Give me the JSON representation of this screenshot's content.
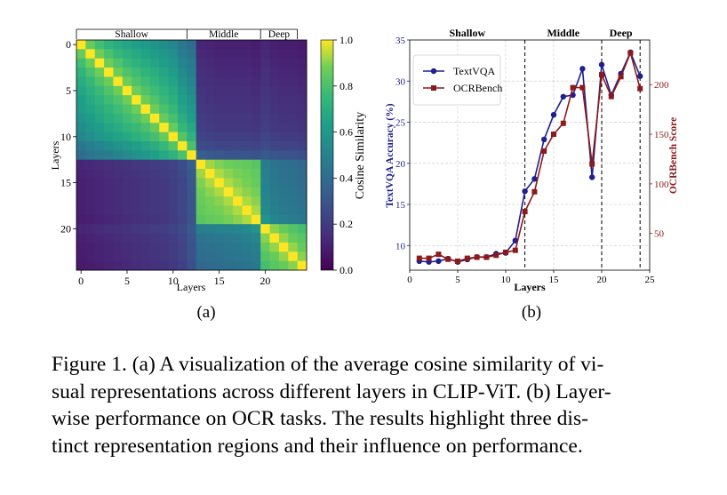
{
  "chart_data": [
    {
      "type": "heatmap",
      "xlabel": "Layers",
      "ylabel": "Layers",
      "x_ticks": [
        0,
        5,
        10,
        15,
        20
      ],
      "y_ticks": [
        0,
        5,
        10,
        15,
        20
      ],
      "n_layers": 25,
      "regions": [
        {
          "label": "Shallow",
          "start": 0,
          "end": 12
        },
        {
          "label": "Middle",
          "start": 12,
          "end": 20
        },
        {
          "label": "Deep",
          "start": 20,
          "end": 24
        }
      ],
      "colorbar": {
        "label": "Cosine Similarity",
        "min": 0.0,
        "max": 1.0,
        "ticks": [
          "0.0",
          "0.2",
          "0.4",
          "0.6",
          "0.8",
          "1.0"
        ]
      },
      "colors": {
        "low": "#440154",
        "mid": "#21918c",
        "high": "#fde725"
      },
      "panel_label": "(a)",
      "values": [
        [
          1.0,
          0.86,
          0.78,
          0.73,
          0.69,
          0.66,
          0.63,
          0.61,
          0.58,
          0.55,
          0.52,
          0.45,
          0.4,
          0.12,
          0.11,
          0.1,
          0.1,
          0.1,
          0.1,
          0.09,
          0.12,
          0.1,
          0.09,
          0.09,
          0.08
        ],
        [
          0.86,
          1.0,
          0.87,
          0.8,
          0.75,
          0.71,
          0.68,
          0.65,
          0.62,
          0.59,
          0.56,
          0.48,
          0.43,
          0.13,
          0.12,
          0.11,
          0.11,
          0.11,
          0.11,
          0.1,
          0.13,
          0.11,
          0.1,
          0.1,
          0.09
        ],
        [
          0.78,
          0.87,
          1.0,
          0.87,
          0.81,
          0.76,
          0.72,
          0.69,
          0.66,
          0.62,
          0.59,
          0.51,
          0.46,
          0.14,
          0.13,
          0.12,
          0.12,
          0.12,
          0.12,
          0.11,
          0.14,
          0.12,
          0.11,
          0.11,
          0.1
        ],
        [
          0.73,
          0.8,
          0.87,
          1.0,
          0.87,
          0.81,
          0.77,
          0.73,
          0.7,
          0.66,
          0.62,
          0.54,
          0.48,
          0.15,
          0.14,
          0.13,
          0.13,
          0.13,
          0.13,
          0.12,
          0.15,
          0.13,
          0.12,
          0.12,
          0.11
        ],
        [
          0.69,
          0.75,
          0.81,
          0.87,
          1.0,
          0.87,
          0.81,
          0.77,
          0.73,
          0.69,
          0.65,
          0.57,
          0.51,
          0.16,
          0.15,
          0.14,
          0.14,
          0.14,
          0.14,
          0.13,
          0.16,
          0.14,
          0.13,
          0.13,
          0.12
        ],
        [
          0.66,
          0.71,
          0.76,
          0.81,
          0.87,
          1.0,
          0.87,
          0.81,
          0.77,
          0.73,
          0.68,
          0.6,
          0.54,
          0.17,
          0.16,
          0.15,
          0.15,
          0.15,
          0.15,
          0.14,
          0.17,
          0.15,
          0.14,
          0.14,
          0.13
        ],
        [
          0.63,
          0.68,
          0.72,
          0.77,
          0.81,
          0.87,
          1.0,
          0.87,
          0.81,
          0.76,
          0.71,
          0.63,
          0.57,
          0.18,
          0.17,
          0.16,
          0.16,
          0.16,
          0.16,
          0.15,
          0.18,
          0.16,
          0.15,
          0.15,
          0.14
        ],
        [
          0.61,
          0.65,
          0.69,
          0.73,
          0.77,
          0.81,
          0.87,
          1.0,
          0.87,
          0.8,
          0.75,
          0.66,
          0.6,
          0.19,
          0.18,
          0.17,
          0.17,
          0.17,
          0.17,
          0.16,
          0.19,
          0.17,
          0.16,
          0.16,
          0.15
        ],
        [
          0.58,
          0.62,
          0.66,
          0.7,
          0.73,
          0.77,
          0.81,
          0.87,
          1.0,
          0.86,
          0.79,
          0.7,
          0.63,
          0.2,
          0.19,
          0.18,
          0.18,
          0.18,
          0.18,
          0.17,
          0.2,
          0.18,
          0.17,
          0.17,
          0.16
        ],
        [
          0.55,
          0.59,
          0.62,
          0.66,
          0.69,
          0.73,
          0.76,
          0.8,
          0.86,
          1.0,
          0.86,
          0.75,
          0.67,
          0.21,
          0.2,
          0.19,
          0.19,
          0.19,
          0.19,
          0.18,
          0.21,
          0.19,
          0.18,
          0.18,
          0.17
        ],
        [
          0.52,
          0.56,
          0.59,
          0.62,
          0.65,
          0.68,
          0.71,
          0.75,
          0.79,
          0.86,
          1.0,
          0.82,
          0.72,
          0.23,
          0.22,
          0.21,
          0.21,
          0.21,
          0.21,
          0.2,
          0.23,
          0.21,
          0.2,
          0.2,
          0.19
        ],
        [
          0.45,
          0.48,
          0.51,
          0.54,
          0.57,
          0.6,
          0.63,
          0.66,
          0.7,
          0.75,
          0.82,
          1.0,
          0.8,
          0.26,
          0.25,
          0.24,
          0.24,
          0.24,
          0.24,
          0.23,
          0.26,
          0.24,
          0.23,
          0.23,
          0.22
        ],
        [
          0.4,
          0.43,
          0.46,
          0.48,
          0.51,
          0.54,
          0.57,
          0.6,
          0.63,
          0.67,
          0.72,
          0.8,
          1.0,
          0.34,
          0.32,
          0.31,
          0.3,
          0.3,
          0.3,
          0.29,
          0.32,
          0.3,
          0.29,
          0.29,
          0.28
        ],
        [
          0.12,
          0.13,
          0.14,
          0.15,
          0.16,
          0.17,
          0.18,
          0.19,
          0.2,
          0.21,
          0.23,
          0.26,
          0.34,
          1.0,
          0.92,
          0.89,
          0.87,
          0.86,
          0.85,
          0.83,
          0.48,
          0.43,
          0.41,
          0.4,
          0.38
        ],
        [
          0.11,
          0.12,
          0.13,
          0.14,
          0.15,
          0.16,
          0.17,
          0.18,
          0.19,
          0.2,
          0.22,
          0.25,
          0.32,
          0.92,
          1.0,
          0.93,
          0.9,
          0.88,
          0.87,
          0.85,
          0.49,
          0.44,
          0.42,
          0.41,
          0.39
        ],
        [
          0.1,
          0.11,
          0.12,
          0.13,
          0.14,
          0.15,
          0.16,
          0.17,
          0.18,
          0.19,
          0.21,
          0.24,
          0.31,
          0.89,
          0.93,
          1.0,
          0.93,
          0.9,
          0.88,
          0.86,
          0.5,
          0.45,
          0.43,
          0.42,
          0.4
        ],
        [
          0.1,
          0.11,
          0.12,
          0.13,
          0.14,
          0.15,
          0.16,
          0.17,
          0.18,
          0.19,
          0.21,
          0.24,
          0.3,
          0.87,
          0.9,
          0.93,
          1.0,
          0.93,
          0.9,
          0.88,
          0.51,
          0.46,
          0.44,
          0.43,
          0.41
        ],
        [
          0.1,
          0.11,
          0.12,
          0.13,
          0.14,
          0.15,
          0.16,
          0.17,
          0.18,
          0.19,
          0.21,
          0.24,
          0.3,
          0.86,
          0.88,
          0.9,
          0.93,
          1.0,
          0.93,
          0.9,
          0.52,
          0.47,
          0.45,
          0.44,
          0.42
        ],
        [
          0.1,
          0.11,
          0.12,
          0.13,
          0.14,
          0.15,
          0.16,
          0.17,
          0.18,
          0.19,
          0.21,
          0.24,
          0.3,
          0.85,
          0.87,
          0.88,
          0.9,
          0.93,
          1.0,
          0.93,
          0.54,
          0.49,
          0.46,
          0.45,
          0.43
        ],
        [
          0.09,
          0.1,
          0.11,
          0.12,
          0.13,
          0.14,
          0.15,
          0.16,
          0.17,
          0.18,
          0.2,
          0.23,
          0.29,
          0.83,
          0.85,
          0.86,
          0.88,
          0.9,
          0.93,
          1.0,
          0.58,
          0.52,
          0.49,
          0.47,
          0.45
        ],
        [
          0.12,
          0.13,
          0.14,
          0.15,
          0.16,
          0.17,
          0.18,
          0.19,
          0.2,
          0.21,
          0.23,
          0.26,
          0.32,
          0.48,
          0.49,
          0.5,
          0.51,
          0.52,
          0.54,
          0.58,
          1.0,
          0.9,
          0.86,
          0.82,
          0.79
        ],
        [
          0.1,
          0.11,
          0.12,
          0.13,
          0.14,
          0.15,
          0.16,
          0.17,
          0.18,
          0.19,
          0.21,
          0.24,
          0.3,
          0.43,
          0.44,
          0.45,
          0.46,
          0.47,
          0.49,
          0.52,
          0.9,
          1.0,
          0.91,
          0.86,
          0.83
        ],
        [
          0.09,
          0.1,
          0.11,
          0.12,
          0.13,
          0.14,
          0.15,
          0.16,
          0.17,
          0.18,
          0.2,
          0.23,
          0.29,
          0.41,
          0.42,
          0.43,
          0.44,
          0.45,
          0.46,
          0.49,
          0.86,
          0.91,
          1.0,
          0.91,
          0.86
        ],
        [
          0.09,
          0.1,
          0.11,
          0.12,
          0.13,
          0.14,
          0.15,
          0.16,
          0.17,
          0.18,
          0.2,
          0.23,
          0.29,
          0.4,
          0.41,
          0.42,
          0.43,
          0.44,
          0.45,
          0.47,
          0.82,
          0.86,
          0.91,
          1.0,
          0.9
        ],
        [
          0.08,
          0.09,
          0.1,
          0.11,
          0.12,
          0.13,
          0.14,
          0.15,
          0.16,
          0.17,
          0.19,
          0.22,
          0.28,
          0.38,
          0.39,
          0.4,
          0.41,
          0.42,
          0.43,
          0.45,
          0.79,
          0.83,
          0.86,
          0.9,
          1.0
        ]
      ]
    },
    {
      "type": "line",
      "xlabel": "Layers",
      "ylabel": "TextVQA Accuracy (%)",
      "ylabel_right": "OCRBench Score",
      "xlim": [
        0,
        25
      ],
      "ylim": [
        7,
        35
      ],
      "ylim_right": [
        13,
        245
      ],
      "x_ticks": [
        0,
        5,
        10,
        15,
        20,
        25
      ],
      "y_ticks": [
        10,
        15,
        20,
        25,
        30,
        35
      ],
      "y_ticks_right": [
        50,
        100,
        150,
        200
      ],
      "grid": true,
      "legend": "top-left",
      "region_boundaries": [
        12,
        20,
        24
      ],
      "regions": [
        {
          "label": "Shallow",
          "start": 0,
          "end": 12
        },
        {
          "label": "Middle",
          "start": 12,
          "end": 20
        },
        {
          "label": "Deep",
          "start": 20,
          "end": 24
        }
      ],
      "panel_label": "(b)",
      "x": [
        1,
        2,
        3,
        4,
        5,
        6,
        7,
        8,
        9,
        10,
        11,
        12,
        13,
        14,
        15,
        16,
        17,
        18,
        19,
        20,
        21,
        22,
        23,
        24
      ],
      "series": [
        {
          "name": "TextVQA",
          "axis": "left",
          "color": "#1f1f8f",
          "values": [
            8.1,
            8.0,
            8.1,
            8.4,
            8.0,
            8.3,
            8.6,
            8.6,
            9.0,
            9.1,
            10.6,
            16.6,
            18.1,
            22.9,
            25.9,
            28.1,
            28.3,
            31.5,
            18.3,
            32.0,
            28.3,
            30.9,
            33.5,
            30.6
          ]
        },
        {
          "name": "OCRBench",
          "axis": "right",
          "color": "#8b1a1a",
          "values": [
            25,
            25,
            29,
            24,
            22,
            25,
            26,
            26,
            28,
            31,
            33,
            72,
            92,
            133,
            150,
            161,
            197,
            197,
            120,
            210,
            188,
            208,
            232,
            196
          ]
        }
      ]
    }
  ],
  "caption": "Figure 1. (a) A visualization of the average cosine similarity of visual representations across different layers in CLIP-ViT. (b) Layer-wise performance on OCR tasks. The results highlight three distinct representation regions and their influence on performance.",
  "caption_lines": [
    "Figure 1. (a) A visualization of the average cosine similarity of vi-",
    "sual representations across different layers in CLIP-ViT. (b) Layer-",
    "wise performance on OCR tasks. The results highlight three dis-",
    "tinct representation regions and their influence on performance."
  ]
}
